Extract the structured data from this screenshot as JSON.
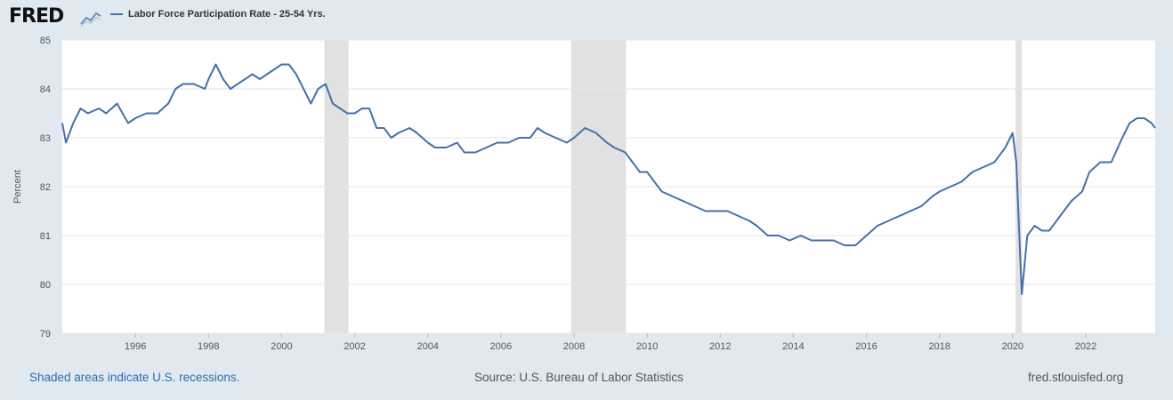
{
  "header": {
    "logo_text": "FRED",
    "logo_icon": "line-chart-icon",
    "legend_label": "Labor Force Participation Rate - 25-54 Yrs."
  },
  "footer": {
    "recession_note": "Shaded areas indicate U.S. recessions.",
    "source": "Source: U.S. Bureau of Labor Statistics",
    "url": "fred.stlouisfed.org"
  },
  "colors": {
    "series": "#4572a7",
    "recession": "#e1e1e1",
    "background": "#e1e9f0",
    "plot": "#ffffff",
    "link": "#2b6cb0"
  },
  "chart_data": {
    "type": "line",
    "title": "",
    "xlabel": "",
    "ylabel": "Percent",
    "xlim": [
      1994.0,
      2023.9
    ],
    "ylim": [
      79,
      85
    ],
    "yticks": [
      79,
      80,
      81,
      82,
      83,
      84,
      85
    ],
    "xticks": [
      1996,
      1998,
      2000,
      2002,
      2004,
      2006,
      2008,
      2010,
      2012,
      2014,
      2016,
      2018,
      2020,
      2022
    ],
    "grid": "horizontal",
    "recessions": [
      [
        2001.17,
        2001.83
      ],
      [
        2007.92,
        2009.42
      ],
      [
        2020.08,
        2020.25
      ]
    ],
    "series": [
      {
        "name": "Labor Force Participation Rate - 25-54 Yrs.",
        "points": [
          [
            1994.0,
            83.3
          ],
          [
            1994.1,
            82.9
          ],
          [
            1994.3,
            83.3
          ],
          [
            1994.5,
            83.6
          ],
          [
            1994.7,
            83.5
          ],
          [
            1995.0,
            83.6
          ],
          [
            1995.2,
            83.5
          ],
          [
            1995.5,
            83.7
          ],
          [
            1995.8,
            83.3
          ],
          [
            1996.0,
            83.4
          ],
          [
            1996.3,
            83.5
          ],
          [
            1996.6,
            83.5
          ],
          [
            1996.9,
            83.7
          ],
          [
            1997.1,
            84.0
          ],
          [
            1997.3,
            84.1
          ],
          [
            1997.6,
            84.1
          ],
          [
            1997.9,
            84.0
          ],
          [
            1998.0,
            84.2
          ],
          [
            1998.2,
            84.5
          ],
          [
            1998.4,
            84.2
          ],
          [
            1998.6,
            84.0
          ],
          [
            1998.8,
            84.1
          ],
          [
            1999.0,
            84.2
          ],
          [
            1999.2,
            84.3
          ],
          [
            1999.4,
            84.2
          ],
          [
            1999.6,
            84.3
          ],
          [
            1999.8,
            84.4
          ],
          [
            2000.0,
            84.5
          ],
          [
            2000.2,
            84.5
          ],
          [
            2000.4,
            84.3
          ],
          [
            2000.6,
            84.0
          ],
          [
            2000.8,
            83.7
          ],
          [
            2001.0,
            84.0
          ],
          [
            2001.2,
            84.1
          ],
          [
            2001.4,
            83.7
          ],
          [
            2001.6,
            83.6
          ],
          [
            2001.8,
            83.5
          ],
          [
            2002.0,
            83.5
          ],
          [
            2002.2,
            83.6
          ],
          [
            2002.4,
            83.6
          ],
          [
            2002.6,
            83.2
          ],
          [
            2002.8,
            83.2
          ],
          [
            2003.0,
            83.0
          ],
          [
            2003.2,
            83.1
          ],
          [
            2003.5,
            83.2
          ],
          [
            2003.7,
            83.1
          ],
          [
            2004.0,
            82.9
          ],
          [
            2004.2,
            82.8
          ],
          [
            2004.5,
            82.8
          ],
          [
            2004.8,
            82.9
          ],
          [
            2005.0,
            82.7
          ],
          [
            2005.3,
            82.7
          ],
          [
            2005.6,
            82.8
          ],
          [
            2005.9,
            82.9
          ],
          [
            2006.2,
            82.9
          ],
          [
            2006.5,
            83.0
          ],
          [
            2006.8,
            83.0
          ],
          [
            2007.0,
            83.2
          ],
          [
            2007.2,
            83.1
          ],
          [
            2007.5,
            83.0
          ],
          [
            2007.8,
            82.9
          ],
          [
            2008.0,
            83.0
          ],
          [
            2008.3,
            83.2
          ],
          [
            2008.6,
            83.1
          ],
          [
            2008.9,
            82.9
          ],
          [
            2009.1,
            82.8
          ],
          [
            2009.4,
            82.7
          ],
          [
            2009.6,
            82.5
          ],
          [
            2009.8,
            82.3
          ],
          [
            2010.0,
            82.3
          ],
          [
            2010.2,
            82.1
          ],
          [
            2010.4,
            81.9
          ],
          [
            2010.7,
            81.8
          ],
          [
            2011.0,
            81.7
          ],
          [
            2011.3,
            81.6
          ],
          [
            2011.6,
            81.5
          ],
          [
            2011.9,
            81.5
          ],
          [
            2012.2,
            81.5
          ],
          [
            2012.5,
            81.4
          ],
          [
            2012.8,
            81.3
          ],
          [
            2013.0,
            81.2
          ],
          [
            2013.3,
            81.0
          ],
          [
            2013.6,
            81.0
          ],
          [
            2013.9,
            80.9
          ],
          [
            2014.2,
            81.0
          ],
          [
            2014.5,
            80.9
          ],
          [
            2014.8,
            80.9
          ],
          [
            2015.1,
            80.9
          ],
          [
            2015.4,
            80.8
          ],
          [
            2015.7,
            80.8
          ],
          [
            2016.0,
            81.0
          ],
          [
            2016.3,
            81.2
          ],
          [
            2016.6,
            81.3
          ],
          [
            2016.9,
            81.4
          ],
          [
            2017.2,
            81.5
          ],
          [
            2017.5,
            81.6
          ],
          [
            2017.8,
            81.8
          ],
          [
            2018.0,
            81.9
          ],
          [
            2018.3,
            82.0
          ],
          [
            2018.6,
            82.1
          ],
          [
            2018.9,
            82.3
          ],
          [
            2019.2,
            82.4
          ],
          [
            2019.5,
            82.5
          ],
          [
            2019.8,
            82.8
          ],
          [
            2020.0,
            83.1
          ],
          [
            2020.1,
            82.5
          ],
          [
            2020.25,
            79.8
          ],
          [
            2020.4,
            81.0
          ],
          [
            2020.6,
            81.2
          ],
          [
            2020.8,
            81.1
          ],
          [
            2021.0,
            81.1
          ],
          [
            2021.3,
            81.4
          ],
          [
            2021.6,
            81.7
          ],
          [
            2021.9,
            81.9
          ],
          [
            2022.1,
            82.3
          ],
          [
            2022.4,
            82.5
          ],
          [
            2022.7,
            82.5
          ],
          [
            2023.0,
            83.0
          ],
          [
            2023.2,
            83.3
          ],
          [
            2023.4,
            83.4
          ],
          [
            2023.6,
            83.4
          ],
          [
            2023.8,
            83.3
          ],
          [
            2023.9,
            83.2
          ]
        ]
      }
    ]
  }
}
